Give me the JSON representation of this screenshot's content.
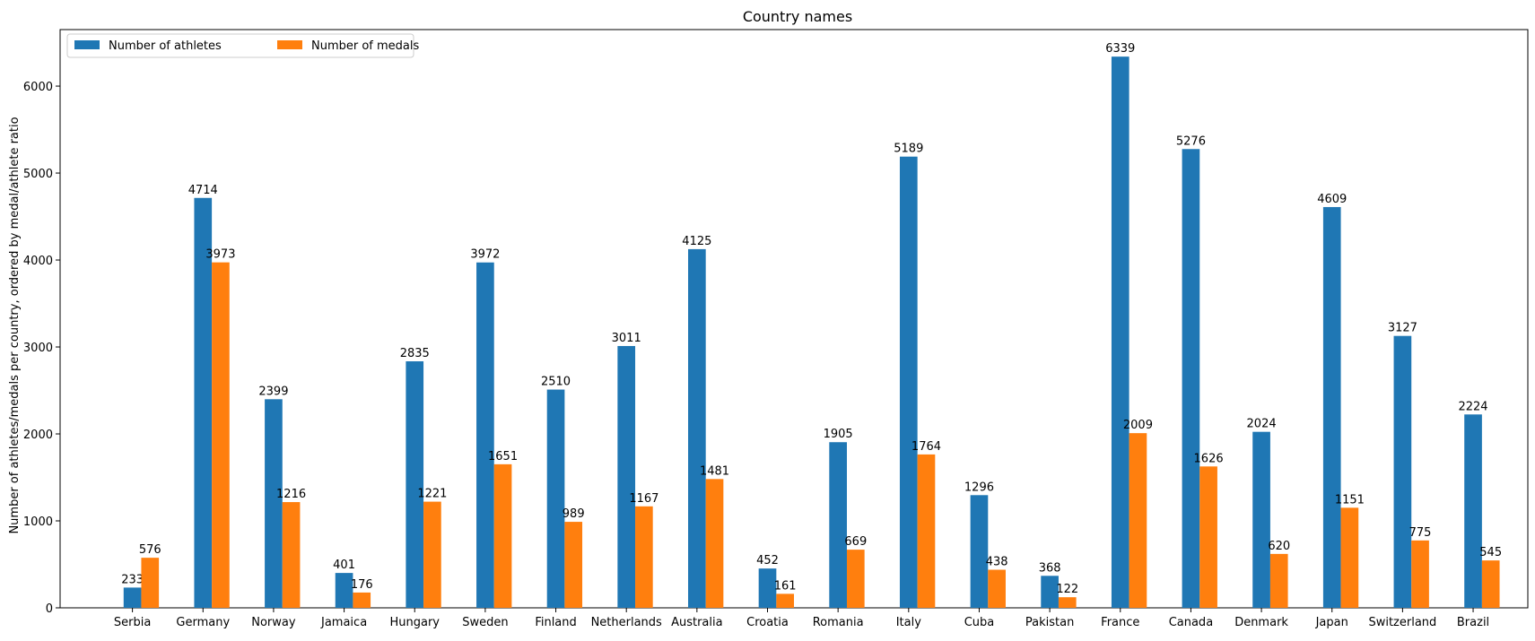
{
  "chart_data": {
    "type": "bar",
    "title": "Country names",
    "xlabel": "",
    "ylabel": "Number of athletes/medals per country, ordered by medal/athlete ratio",
    "ylim": [
      0,
      6650
    ],
    "yticks": [
      0,
      1000,
      2000,
      3000,
      4000,
      5000,
      6000
    ],
    "categories": [
      "Serbia",
      "Germany",
      "Norway",
      "Jamaica",
      "Hungary",
      "Sweden",
      "Finland",
      "Netherlands",
      "Australia",
      "Croatia",
      "Romania",
      "Italy",
      "Cuba",
      "Pakistan",
      "France",
      "Canada",
      "Denmark",
      "Japan",
      "Switzerland",
      "Brazil"
    ],
    "series": [
      {
        "name": "Number of athletes",
        "color": "#1f77b4",
        "values": [
          233,
          4714,
          2399,
          401,
          2835,
          3972,
          2510,
          3011,
          4125,
          452,
          1905,
          5189,
          1296,
          368,
          6339,
          5276,
          2024,
          4609,
          3127,
          2224
        ]
      },
      {
        "name": "Number of medals",
        "color": "#ff7f0e",
        "values": [
          576,
          3973,
          1216,
          176,
          1221,
          1651,
          989,
          1167,
          1481,
          161,
          669,
          1764,
          438,
          122,
          2009,
          1626,
          620,
          1151,
          775,
          545
        ]
      }
    ],
    "legend": {
      "placement": "top-left",
      "columns": 2
    },
    "grid": false
  }
}
